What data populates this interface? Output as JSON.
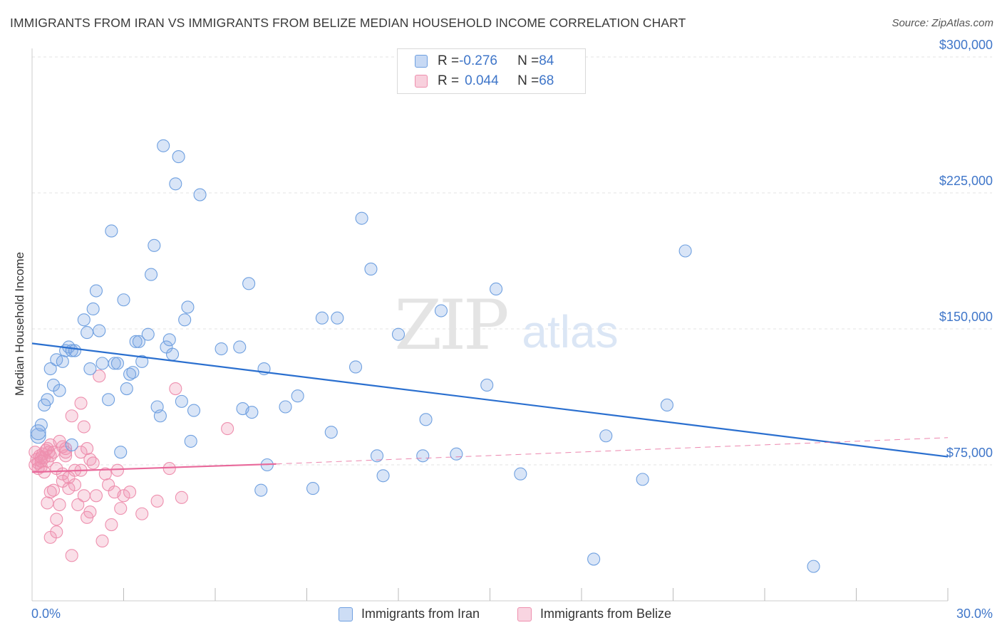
{
  "title": "IMMIGRANTS FROM IRAN VS IMMIGRANTS FROM BELIZE MEDIAN HOUSEHOLD INCOME CORRELATION CHART",
  "source": "Source: ZipAtlas.com",
  "watermark": {
    "zip": "ZIP",
    "atlas": "atlas"
  },
  "colors": {
    "iran": "#6fa0e0",
    "iran_fill": "rgba(130,170,230,0.30)",
    "iran_line": "#2a6fcf",
    "belize": "#ee8fae",
    "belize_fill": "rgba(240,150,180,0.30)",
    "belize_line": "#e8689a",
    "axis_label": "#3f76c9",
    "grid": "#e3e3e3"
  },
  "legend": {
    "rows": [
      {
        "r_label": "R = ",
        "r_value": "-0.276",
        "n_label": "N = ",
        "n_value": "84"
      },
      {
        "r_label": "R = ",
        "r_value": "0.044",
        "n_label": "N = ",
        "n_value": "68"
      }
    ]
  },
  "bottom_legend": {
    "iran": "Immigrants from Iran",
    "belize": "Immigrants from Belize"
  },
  "chart_data": {
    "type": "scatter",
    "title": "IMMIGRANTS FROM IRAN VS IMMIGRANTS FROM BELIZE MEDIAN HOUSEHOLD INCOME CORRELATION CHART",
    "xlabel": "",
    "ylabel": "Median Household Income",
    "xlim": [
      0,
      30
    ],
    "ylim": [
      0,
      305000
    ],
    "x_tick_labels": [
      "0.0%",
      "30.0%"
    ],
    "y_ticks": [
      75000,
      150000,
      225000,
      300000
    ],
    "y_tick_labels": [
      "$75,000",
      "$150,000",
      "$225,000",
      "$300,000"
    ],
    "grid": true,
    "legend_position": "top-center",
    "series": [
      {
        "name": "Immigrants from Iran",
        "stats": {
          "R": -0.276,
          "N": 84
        },
        "trend": {
          "x": [
            0,
            30
          ],
          "y": [
            142000,
            79500
          ]
        },
        "points": [
          [
            0.2,
            91000
          ],
          [
            0.3,
            97000
          ],
          [
            0.4,
            108000
          ],
          [
            0.5,
            111000
          ],
          [
            0.6,
            128000
          ],
          [
            0.7,
            119000
          ],
          [
            0.9,
            116000
          ],
          [
            0.8,
            133000
          ],
          [
            1.0,
            132000
          ],
          [
            1.1,
            138000
          ],
          [
            1.2,
            140000
          ],
          [
            1.3,
            138000
          ],
          [
            1.4,
            138000
          ],
          [
            1.3,
            86000
          ],
          [
            1.7,
            155000
          ],
          [
            1.8,
            148000
          ],
          [
            1.9,
            128000
          ],
          [
            2.0,
            161000
          ],
          [
            2.1,
            171000
          ],
          [
            2.2,
            149000
          ],
          [
            2.3,
            131000
          ],
          [
            2.5,
            111000
          ],
          [
            2.6,
            204000
          ],
          [
            2.7,
            131000
          ],
          [
            2.8,
            131000
          ],
          [
            2.9,
            82000
          ],
          [
            3.0,
            166000
          ],
          [
            3.1,
            117000
          ],
          [
            3.2,
            125000
          ],
          [
            3.3,
            126000
          ],
          [
            3.4,
            143000
          ],
          [
            3.5,
            143000
          ],
          [
            3.6,
            132000
          ],
          [
            3.8,
            147000
          ],
          [
            3.9,
            180000
          ],
          [
            4.0,
            196000
          ],
          [
            4.1,
            107000
          ],
          [
            4.2,
            102000
          ],
          [
            4.3,
            251000
          ],
          [
            4.4,
            140000
          ],
          [
            4.5,
            144000
          ],
          [
            4.6,
            136000
          ],
          [
            4.7,
            230000
          ],
          [
            4.8,
            245000
          ],
          [
            4.9,
            110000
          ],
          [
            5.0,
            155000
          ],
          [
            5.1,
            162000
          ],
          [
            5.2,
            88000
          ],
          [
            5.3,
            105000
          ],
          [
            5.5,
            224000
          ],
          [
            6.2,
            139000
          ],
          [
            6.8,
            140000
          ],
          [
            6.9,
            106000
          ],
          [
            7.1,
            175000
          ],
          [
            7.2,
            104000
          ],
          [
            7.5,
            61000
          ],
          [
            7.6,
            128000
          ],
          [
            7.7,
            75000
          ],
          [
            8.3,
            107000
          ],
          [
            8.7,
            113000
          ],
          [
            9.2,
            62000
          ],
          [
            9.5,
            156000
          ],
          [
            9.8,
            93000
          ],
          [
            10.0,
            156000
          ],
          [
            10.6,
            129000
          ],
          [
            10.8,
            211000
          ],
          [
            11.1,
            183000
          ],
          [
            11.3,
            80000
          ],
          [
            11.5,
            69000
          ],
          [
            12.0,
            147000
          ],
          [
            12.8,
            80000
          ],
          [
            12.9,
            100000
          ],
          [
            13.4,
            160000
          ],
          [
            13.9,
            81000
          ],
          [
            14.9,
            119000
          ],
          [
            15.2,
            172000
          ],
          [
            16.0,
            70000
          ],
          [
            18.4,
            23000
          ],
          [
            18.8,
            91000
          ],
          [
            20.0,
            67000
          ],
          [
            20.8,
            108000
          ],
          [
            21.4,
            193000
          ],
          [
            25.6,
            19000
          ],
          [
            0.2,
            93000
          ]
        ]
      },
      {
        "name": "Immigrants from Belize",
        "stats": {
          "R": 0.044,
          "N": 68
        },
        "trend_solid": {
          "x": [
            0,
            8.0
          ],
          "y": [
            71000,
            75500
          ]
        },
        "trend_dashed": {
          "x": [
            8.0,
            30
          ],
          "y": [
            75500,
            90000
          ]
        },
        "points": [
          [
            0.1,
            82000
          ],
          [
            0.15,
            78000
          ],
          [
            0.2,
            76000
          ],
          [
            0.25,
            80000
          ],
          [
            0.3,
            74000
          ],
          [
            0.35,
            81000
          ],
          [
            0.4,
            79000
          ],
          [
            0.45,
            83000
          ],
          [
            0.5,
            77000
          ],
          [
            0.55,
            82000
          ],
          [
            0.6,
            80000
          ],
          [
            0.1,
            75000
          ],
          [
            0.2,
            73000
          ],
          [
            0.3,
            79000
          ],
          [
            0.4,
            71000
          ],
          [
            0.5,
            84000
          ],
          [
            0.6,
            86000
          ],
          [
            0.7,
            82000
          ],
          [
            0.8,
            73000
          ],
          [
            0.9,
            88000
          ],
          [
            1.0,
            85000
          ],
          [
            0.5,
            54000
          ],
          [
            0.6,
            60000
          ],
          [
            0.7,
            61000
          ],
          [
            0.6,
            35000
          ],
          [
            0.8,
            45000
          ],
          [
            0.8,
            38000
          ],
          [
            0.9,
            53000
          ],
          [
            1.0,
            66000
          ],
          [
            1.0,
            70000
          ],
          [
            1.1,
            80000
          ],
          [
            1.1,
            84000
          ],
          [
            1.2,
            62000
          ],
          [
            1.2,
            68000
          ],
          [
            1.3,
            102000
          ],
          [
            1.1,
            82000
          ],
          [
            1.3,
            25000
          ],
          [
            1.4,
            64000
          ],
          [
            1.4,
            72000
          ],
          [
            1.5,
            53000
          ],
          [
            1.6,
            109000
          ],
          [
            1.6,
            82000
          ],
          [
            1.6,
            72000
          ],
          [
            1.7,
            96000
          ],
          [
            1.7,
            58000
          ],
          [
            1.8,
            84000
          ],
          [
            1.8,
            46000
          ],
          [
            1.9,
            78000
          ],
          [
            1.9,
            49000
          ],
          [
            2.0,
            76000
          ],
          [
            2.1,
            58000
          ],
          [
            2.2,
            124000
          ],
          [
            2.3,
            33000
          ],
          [
            2.4,
            70000
          ],
          [
            2.5,
            64000
          ],
          [
            2.6,
            42000
          ],
          [
            2.7,
            60000
          ],
          [
            2.8,
            72000
          ],
          [
            2.9,
            51000
          ],
          [
            3.0,
            58000
          ],
          [
            3.2,
            60000
          ],
          [
            3.6,
            48000
          ],
          [
            4.1,
            55000
          ],
          [
            4.5,
            73000
          ],
          [
            4.7,
            117000
          ],
          [
            4.9,
            57000
          ],
          [
            6.4,
            95000
          ],
          [
            0.3,
            77000
          ]
        ]
      }
    ]
  }
}
